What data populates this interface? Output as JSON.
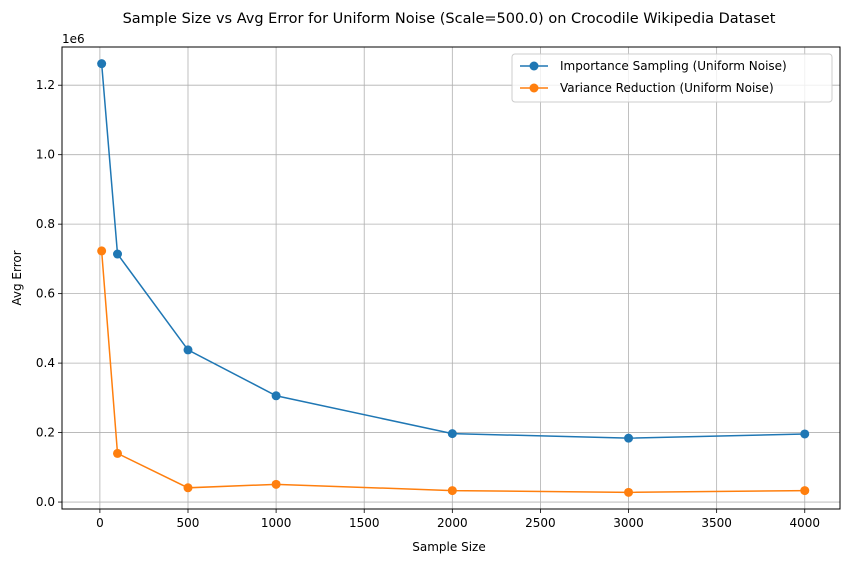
{
  "chart_data": {
    "type": "line",
    "title": "Sample Size vs Avg Error for Uniform Noise (Scale=500.0) on Crocodile Wikipedia Dataset",
    "xlabel": "Sample Size",
    "ylabel": "Avg Error",
    "y_offset_label": "1e6",
    "xlim": [
      -215,
      4200
    ],
    "ylim": [
      -0.02,
      1.31
    ],
    "x_ticks": [
      0,
      500,
      1000,
      1500,
      2000,
      2500,
      3000,
      3500,
      4000
    ],
    "x_tick_labels": [
      "0",
      "500",
      "1000",
      "1500",
      "2000",
      "2500",
      "3000",
      "3500",
      "4000"
    ],
    "y_ticks": [
      0.0,
      0.2,
      0.4,
      0.6,
      0.8,
      1.0,
      1.2
    ],
    "y_tick_labels": [
      "0.0",
      "0.2",
      "0.4",
      "0.6",
      "0.8",
      "1.0",
      "1.2"
    ],
    "grid": true,
    "legend_position": "top-right",
    "x": [
      10,
      100,
      500,
      1000,
      2000,
      3000,
      4000
    ],
    "series": [
      {
        "name": "Importance Sampling (Uniform Noise)",
        "color": "#1f77b4",
        "values": [
          1.262,
          0.714,
          0.438,
          0.306,
          0.197,
          0.184,
          0.196
        ]
      },
      {
        "name": "Variance Reduction (Uniform Noise)",
        "color": "#ff7f0e",
        "values": [
          0.723,
          0.14,
          0.041,
          0.051,
          0.033,
          0.028,
          0.033
        ]
      }
    ]
  }
}
